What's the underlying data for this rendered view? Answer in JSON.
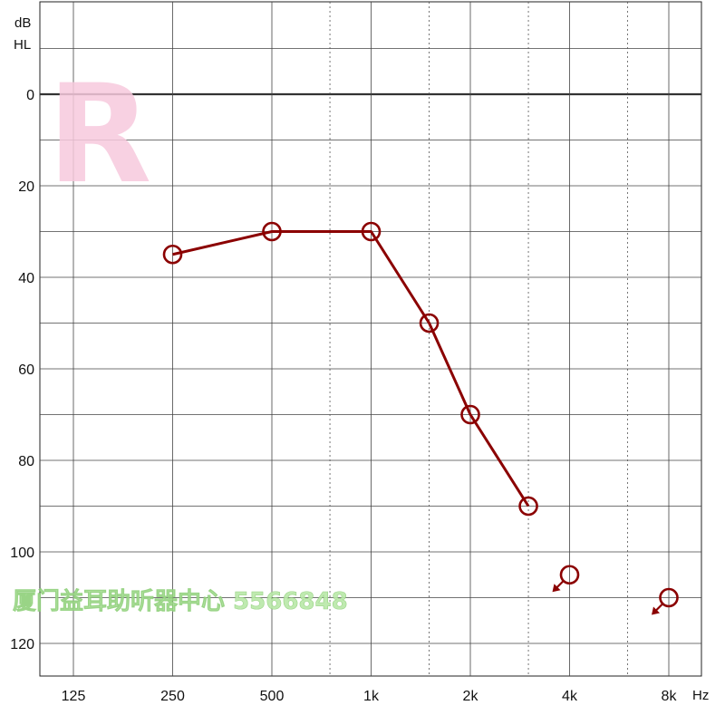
{
  "chart_data": {
    "type": "line",
    "ear_label": "R",
    "y_unit_top": "dB",
    "y_unit_bottom": "HL",
    "x_unit": "Hz",
    "x_tick_labels": [
      "125",
      "250",
      "500",
      "1k",
      "2k",
      "4k",
      "8k"
    ],
    "x_tick_octaves": [
      0,
      1,
      2,
      3,
      4,
      5,
      6
    ],
    "x_minor_octaves": [
      2.585,
      3.585,
      4.585,
      5.585
    ],
    "y_tick_labels": [
      "0",
      "20",
      "40",
      "60",
      "80",
      "100",
      "120"
    ],
    "y_tick_values": [
      0,
      20,
      40,
      60,
      80,
      100,
      120
    ],
    "ylim": [
      -17,
      128
    ],
    "y_inverted": true,
    "grid": true,
    "series": [
      {
        "symbol": "circle",
        "color": "#8b0000",
        "points": [
          {
            "freq_octave": 1,
            "freq": "250",
            "db": 35
          },
          {
            "freq_octave": 2,
            "freq": "500",
            "db": 30
          },
          {
            "freq_octave": 3,
            "freq": "1k",
            "db": 30
          },
          {
            "freq_octave": 3.585,
            "freq": "1.5k",
            "db": 50
          },
          {
            "freq_octave": 4,
            "freq": "2k",
            "db": 70
          },
          {
            "freq_octave": 4.585,
            "freq": "3k",
            "db": 90
          }
        ],
        "no_response": [
          {
            "freq_octave": 5,
            "freq": "4k",
            "db": 105
          },
          {
            "freq_octave": 6,
            "freq": "8k",
            "db": 110
          }
        ]
      }
    ],
    "watermark": "厦门益耳助听器中心 5566848"
  }
}
